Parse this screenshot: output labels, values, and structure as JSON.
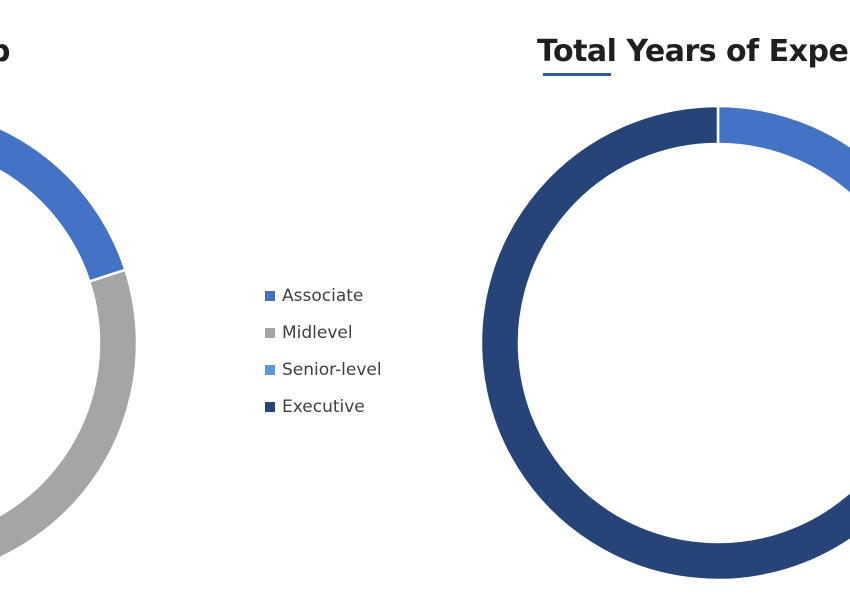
{
  "chart_data": [
    {
      "type": "pie",
      "title": "",
      "title_visible_fragment": "p",
      "categories": [
        "Associate",
        "Midlevel",
        "Senior-level",
        "Executive"
      ],
      "values": [
        0.2,
        0.39,
        0.0,
        0.41
      ],
      "colors": [
        "#4472c4",
        "#a5a5a5",
        "#5b9bd5",
        "#264478"
      ],
      "legend": "right",
      "donut": true,
      "note": ""
    },
    {
      "type": "pie",
      "title": "Total Years of Exper",
      "categories": [
        "Associate",
        "Midlevel",
        "Senior-level",
        "Executive"
      ],
      "values": [
        0.13,
        0.0,
        0.05,
        0.82
      ],
      "colors": [
        "#4472c4",
        "#a5a5a5",
        "#5b9bd5",
        "#264478"
      ],
      "legend": "left",
      "donut": true
    }
  ],
  "legend": {
    "items": [
      {
        "label": "Associate",
        "color": "#4472c4"
      },
      {
        "label": "Midlevel",
        "color": "#a5a5a5"
      },
      {
        "label": "Senior-level",
        "color": "#5b9bd5"
      },
      {
        "label": "Executive",
        "color": "#264478"
      }
    ]
  }
}
